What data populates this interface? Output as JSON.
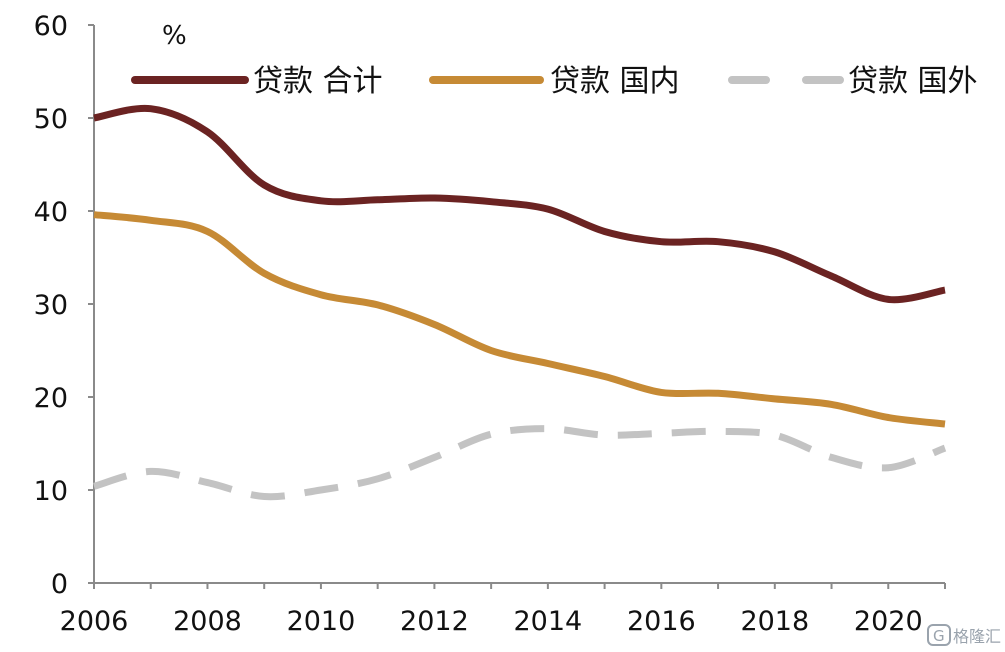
{
  "chart_data": {
    "type": "line",
    "unit_label": "%",
    "x": [
      2006,
      2007,
      2008,
      2009,
      2010,
      2011,
      2012,
      2013,
      2014,
      2015,
      2016,
      2017,
      2018,
      2019,
      2020,
      2021
    ],
    "x_tick_labels": [
      "2006",
      "2008",
      "2010",
      "2012",
      "2014",
      "2016",
      "2018",
      "2020"
    ],
    "y_tick_labels": [
      "0",
      "10",
      "20",
      "30",
      "40",
      "50",
      "60"
    ],
    "ylim": [
      0,
      60
    ],
    "xlim": [
      2006,
      2021
    ],
    "grid": false,
    "legend_position": "top",
    "series": [
      {
        "name": "贷款 合计",
        "color": "#6b2322",
        "dash": "solid",
        "values": [
          50.0,
          51.0,
          48.5,
          42.8,
          41.1,
          41.2,
          41.4,
          41.0,
          40.2,
          37.8,
          36.7,
          36.7,
          35.6,
          33.0,
          30.5,
          31.5
        ]
      },
      {
        "name": "贷款 国内",
        "color": "#c68a35",
        "dash": "solid",
        "values": [
          39.6,
          39.0,
          37.8,
          33.3,
          31.0,
          29.9,
          27.8,
          25.0,
          23.6,
          22.2,
          20.5,
          20.4,
          19.8,
          19.2,
          17.8,
          17.1
        ]
      },
      {
        "name": "贷款 国外",
        "color": "#c3c3c3",
        "dash": "dashed",
        "values": [
          10.4,
          12.0,
          10.8,
          9.3,
          10.0,
          11.2,
          13.5,
          16.0,
          16.6,
          15.9,
          16.1,
          16.3,
          15.9,
          13.5,
          12.4,
          14.5
        ]
      }
    ]
  },
  "watermark": {
    "label": "格隆汇"
  }
}
